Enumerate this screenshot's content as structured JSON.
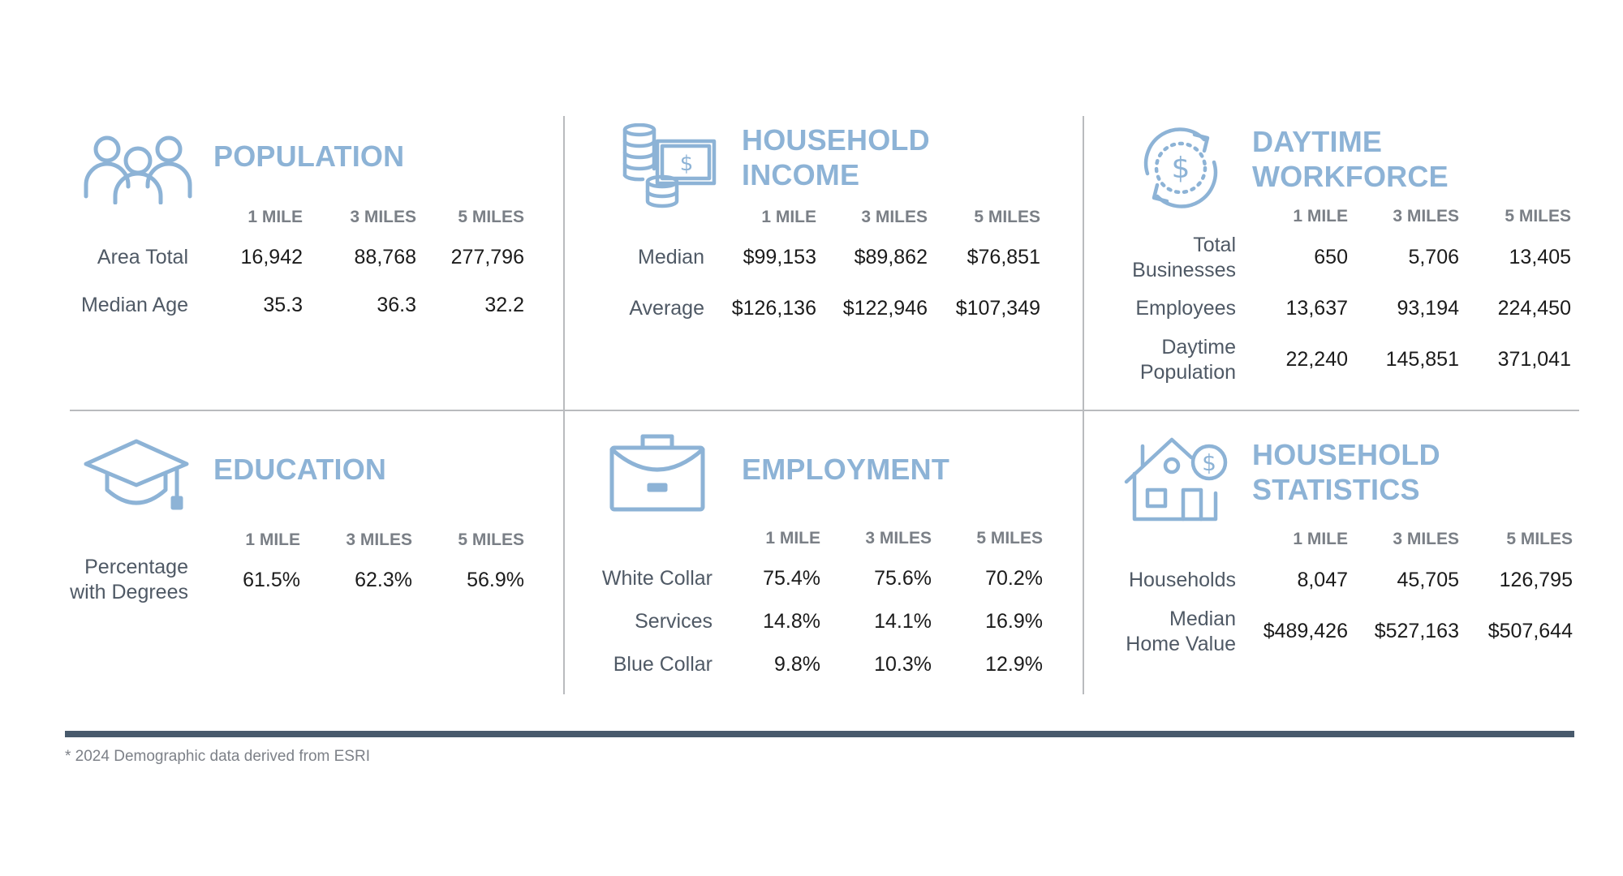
{
  "colors": {
    "accent": "#8db3d6",
    "divider": "#b9bbbe",
    "footer_bar": "#485a6c"
  },
  "population": {
    "title": "POPULATION",
    "icon": "people-group-icon",
    "headers": [
      "1 MILE",
      "3 MILES",
      "5 MILES"
    ],
    "rows": [
      {
        "label": "Area Total",
        "values": [
          "16,942",
          "88,768",
          "277,796"
        ]
      },
      {
        "label": "Median Age",
        "values": [
          "35.3",
          "36.3",
          "32.2"
        ]
      }
    ]
  },
  "household_income": {
    "title_line1": "HOUSEHOLD",
    "title_line2": "INCOME",
    "icon": "coins-cash-icon",
    "headers": [
      "1 MILE",
      "3 MILES",
      "5 MILES"
    ],
    "rows": [
      {
        "label": "Median",
        "values": [
          "$99,153",
          "$89,862",
          "$76,851"
        ]
      },
      {
        "label": "Average",
        "values": [
          "$126,136",
          "$122,946",
          "$107,349"
        ]
      }
    ]
  },
  "daytime_workforce": {
    "title_line1": "DAYTIME",
    "title_line2": "WORKFORCE",
    "icon": "dollar-cycle-icon",
    "headers": [
      "1 MILE",
      "3 MILES",
      "5 MILES"
    ],
    "rows": [
      {
        "label_line1": "Total",
        "label_line2": "Businesses",
        "values": [
          "650",
          "5,706",
          "13,405"
        ]
      },
      {
        "label": "Employees",
        "values": [
          "13,637",
          "93,194",
          "224,450"
        ]
      },
      {
        "label_line1": "Daytime",
        "label_line2": "Population",
        "values": [
          "22,240",
          "145,851",
          "371,041"
        ]
      }
    ]
  },
  "education": {
    "title": "EDUCATION",
    "icon": "graduation-cap-icon",
    "headers": [
      "1 MILE",
      "3 MILES",
      "5 MILES"
    ],
    "rows": [
      {
        "label_line1": "Percentage",
        "label_line2": "with Degrees",
        "values": [
          "61.5%",
          "62.3%",
          "56.9%"
        ]
      }
    ]
  },
  "employment": {
    "title": "EMPLOYMENT",
    "icon": "briefcase-icon",
    "headers": [
      "1 MILE",
      "3 MILES",
      "5 MILES"
    ],
    "rows": [
      {
        "label": "White Collar",
        "values": [
          "75.4%",
          "75.6%",
          "70.2%"
        ]
      },
      {
        "label": "Services",
        "values": [
          "14.8%",
          "14.1%",
          "16.9%"
        ]
      },
      {
        "label": "Blue Collar",
        "values": [
          "9.8%",
          "10.3%",
          "12.9%"
        ]
      }
    ]
  },
  "household_statistics": {
    "title_line1": "HOUSEHOLD",
    "title_line2": "STATISTICS",
    "icon": "house-dollar-icon",
    "headers": [
      "1 MILE",
      "3 MILES",
      "5 MILES"
    ],
    "rows": [
      {
        "label": "Households",
        "values": [
          "8,047",
          "45,705",
          "126,795"
        ]
      },
      {
        "label_line1": "Median",
        "label_line2": "Home Value",
        "values": [
          "$489,426",
          "$527,163",
          "$507,644"
        ]
      }
    ]
  },
  "footnote": "* 2024 Demographic data derived from ESRI"
}
